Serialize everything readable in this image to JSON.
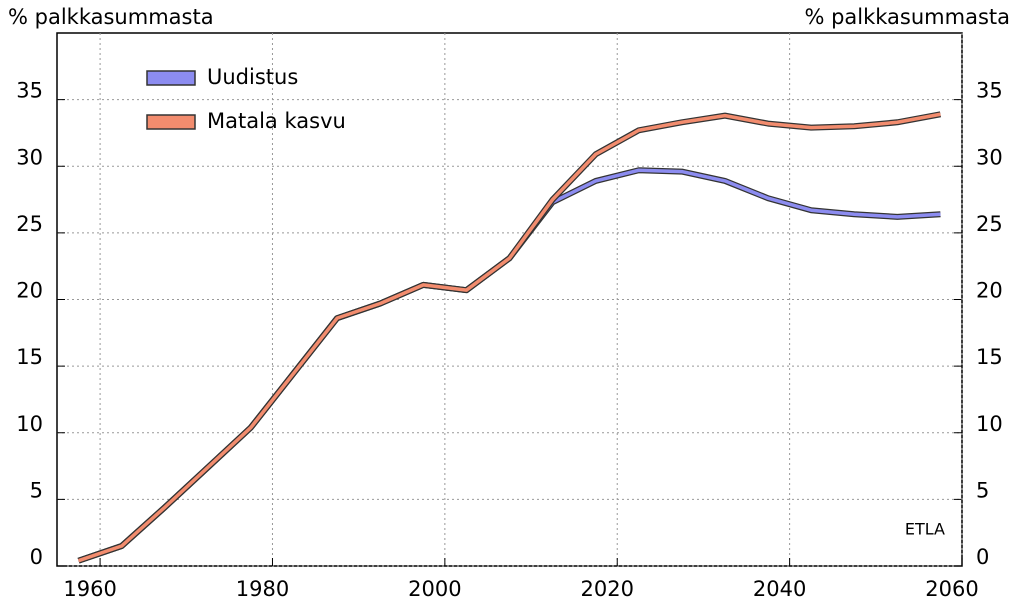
{
  "chart_data": {
    "type": "line",
    "y_label_left": "% palkkasummasta",
    "y_label_right": "% palkkasummasta",
    "annotation": "ETLA",
    "x": [
      1957.5,
      1962.5,
      1967.5,
      1972.5,
      1977.5,
      1982.5,
      1987.5,
      1992.5,
      1997.5,
      2002.5,
      2007.5,
      2012.5,
      2017.5,
      2022.5,
      2027.5,
      2032.5,
      2037.5,
      2042.5,
      2047.5,
      2052.5,
      2057.5
    ],
    "series": [
      {
        "name": "Uudistus",
        "color": "#8c8cf0",
        "values": [
          0.4,
          1.5,
          4.4,
          7.4,
          10.4,
          14.5,
          18.6,
          19.7,
          21.1,
          20.7,
          23.1,
          27.3,
          28.9,
          29.7,
          29.6,
          28.9,
          27.6,
          26.7,
          26.4,
          26.2,
          26.4
        ]
      },
      {
        "name": "Matala kasvu",
        "color": "#f28c6e",
        "values": [
          0.4,
          1.5,
          4.4,
          7.4,
          10.4,
          14.5,
          18.6,
          19.7,
          21.1,
          20.7,
          23.1,
          27.5,
          30.9,
          32.7,
          33.3,
          33.8,
          33.2,
          32.9,
          33.0,
          33.3,
          33.9
        ]
      }
    ],
    "xlim": [
      1955,
      2060
    ],
    "xticks": [
      1960,
      1980,
      2000,
      2020,
      2040,
      2060
    ],
    "ylim": [
      0,
      40
    ],
    "yticks": [
      0,
      5,
      10,
      15,
      20,
      25,
      30,
      35
    ],
    "grid": true,
    "legend": "upper left"
  }
}
